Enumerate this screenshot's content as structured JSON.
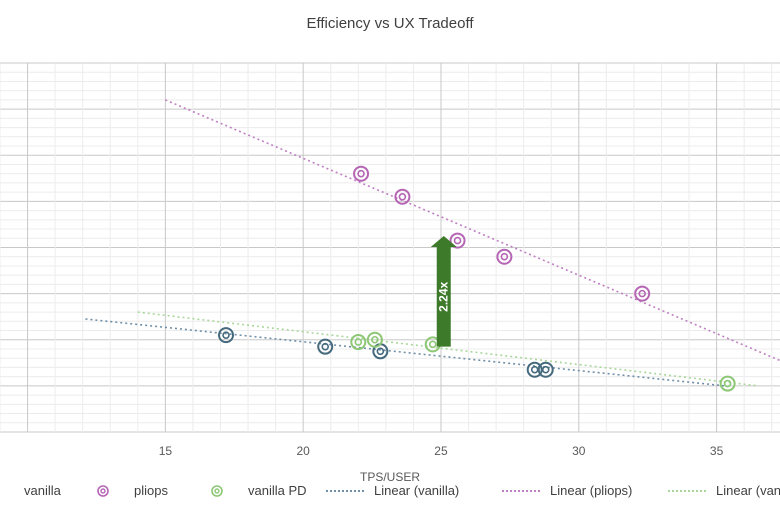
{
  "chart_data": {
    "type": "scatter",
    "title": "Efficiency vs UX Tradeoff",
    "xlabel": "TPS/USER",
    "ylabel": "",
    "xlim": [
      9,
      37.3
    ],
    "ylim": [
      0,
      8
    ],
    "x_ticks": [
      15,
      20,
      25,
      30,
      35
    ],
    "grid": true,
    "legend_position": "bottom",
    "series": [
      {
        "name": "vanilla",
        "color": "#44697d",
        "points": [
          [
            17.2,
            2.1
          ],
          [
            20.8,
            1.85
          ],
          [
            22.8,
            1.75
          ],
          [
            28.4,
            1.35
          ],
          [
            28.8,
            1.35
          ]
        ]
      },
      {
        "name": "pliops",
        "color": "#b565b4",
        "points": [
          [
            22.1,
            5.6
          ],
          [
            23.6,
            5.1
          ],
          [
            25.6,
            4.15
          ],
          [
            27.3,
            3.8
          ],
          [
            32.3,
            3.0
          ]
        ]
      },
      {
        "name": "vanilla PD",
        "color": "#8dc776",
        "points": [
          [
            22.0,
            1.95
          ],
          [
            22.6,
            2.0
          ],
          [
            24.7,
            1.9
          ],
          [
            35.4,
            1.05
          ]
        ]
      }
    ],
    "trendlines": [
      {
        "name": "Linear (vanilla)",
        "color": "#6f8fa8",
        "from": [
          12.1,
          2.45
        ],
        "to": [
          35.3,
          1.0
        ]
      },
      {
        "name": "Linear (pliops)",
        "color": "#c07fc2",
        "from": [
          15.0,
          7.2
        ],
        "to": [
          37.3,
          1.55
        ]
      },
      {
        "name": "Linear (vanilla PD)",
        "color": "#a9d79b",
        "from": [
          14.0,
          2.6
        ],
        "to": [
          36.5,
          1.0
        ]
      }
    ],
    "annotations": [
      {
        "text": "2.24x",
        "type": "arrow",
        "x": 25.1,
        "y_from": 1.85,
        "y_to": 4.25,
        "color": "#3d7a2a"
      }
    ]
  },
  "legend": [
    {
      "label": "vanilla",
      "kind": "marker",
      "color": "#44697d"
    },
    {
      "label": "pliops",
      "kind": "marker",
      "color": "#b565b4"
    },
    {
      "label": "vanilla PD",
      "kind": "marker",
      "color": "#8dc776"
    },
    {
      "label": "Linear (vanilla)",
      "kind": "line",
      "color": "#6f8fa8"
    },
    {
      "label": "Linear (pliops)",
      "kind": "line",
      "color": "#c07fc2"
    },
    {
      "label": "Linear (vanilla PD)",
      "kind": "line",
      "color": "#a9d79b"
    }
  ]
}
